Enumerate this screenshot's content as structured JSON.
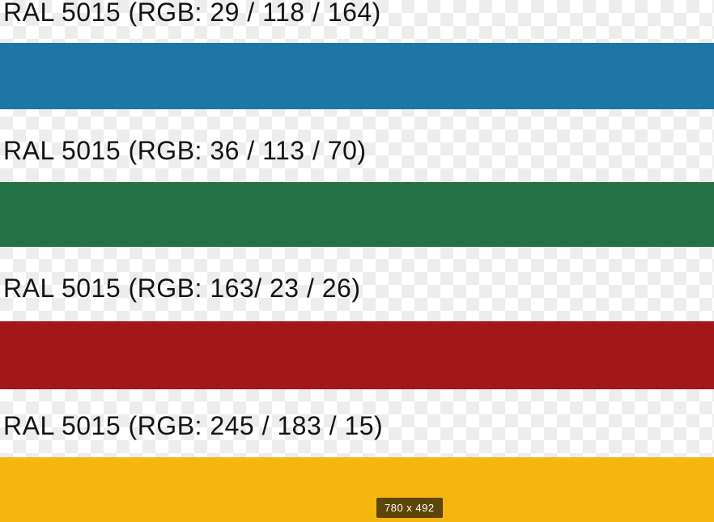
{
  "swatches": [
    {
      "label": "RAL 5015 (RGB: 29 / 118 / 164)",
      "color": "#1d76a4"
    },
    {
      "label": "RAL 5015 (RGB: 36 / 113 / 70)",
      "color": "#247146"
    },
    {
      "label": "RAL 5015 (RGB: 163/ 23 / 26)",
      "color": "#a3171a"
    },
    {
      "label": "RAL 5015 (RGB: 245 / 183 / 15)",
      "color": "#f5b70f"
    }
  ],
  "size_badge": {
    "text": "780 x 492"
  }
}
